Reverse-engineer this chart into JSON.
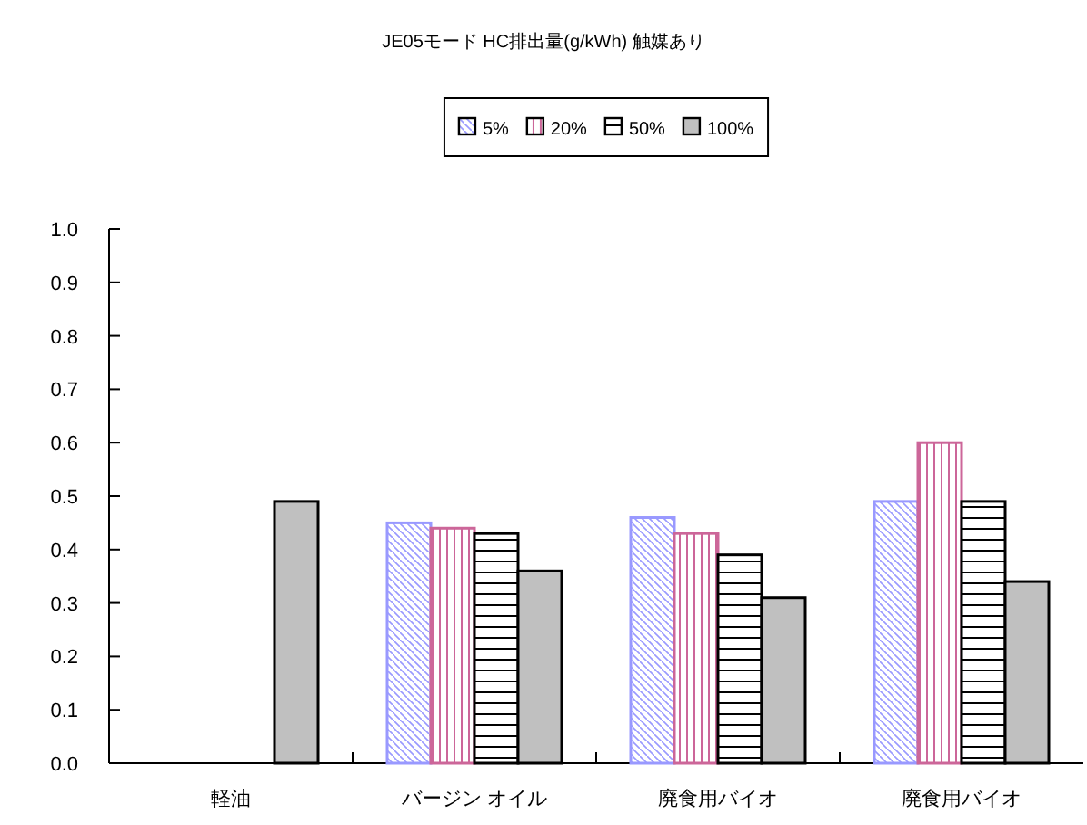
{
  "chart_data": {
    "type": "bar",
    "title": "JE05モード  HC排出量(g/kWh)  触媒あり",
    "categories": [
      "軽油",
      "バージン オイル",
      "廃食用バイオ",
      "廃食用バイオ"
    ],
    "series": [
      {
        "name": "5%",
        "color": "#9999ff",
        "values": [
          null,
          0.45,
          0.46,
          0.49
        ]
      },
      {
        "name": "20%",
        "color": "#cc6699",
        "values": [
          null,
          0.44,
          0.43,
          0.6
        ]
      },
      {
        "name": "50%",
        "color": "#000000",
        "values": [
          null,
          0.43,
          0.39,
          0.49
        ]
      },
      {
        "name": "100%",
        "color": "#c0c0c0",
        "values": [
          0.49,
          0.36,
          0.31,
          0.34
        ]
      }
    ],
    "ylim": [
      0,
      1
    ],
    "yticks": [
      {
        "value": 0,
        "label": "0.0"
      },
      {
        "value": 0.1,
        "label": "0.1"
      },
      {
        "value": 0.2,
        "label": "0.2"
      },
      {
        "value": 0.3,
        "label": "0.3"
      },
      {
        "value": 0.4,
        "label": "0.4"
      },
      {
        "value": 0.5,
        "label": "0.5"
      },
      {
        "value": 0.6,
        "label": "0.6"
      },
      {
        "value": 0.7,
        "label": "0.7"
      },
      {
        "value": 0.8,
        "label": "0.8"
      },
      {
        "value": 0.9,
        "label": "0.9"
      },
      {
        "value": 1,
        "label": "1.0"
      }
    ],
    "grid": false,
    "legend": "top"
  }
}
